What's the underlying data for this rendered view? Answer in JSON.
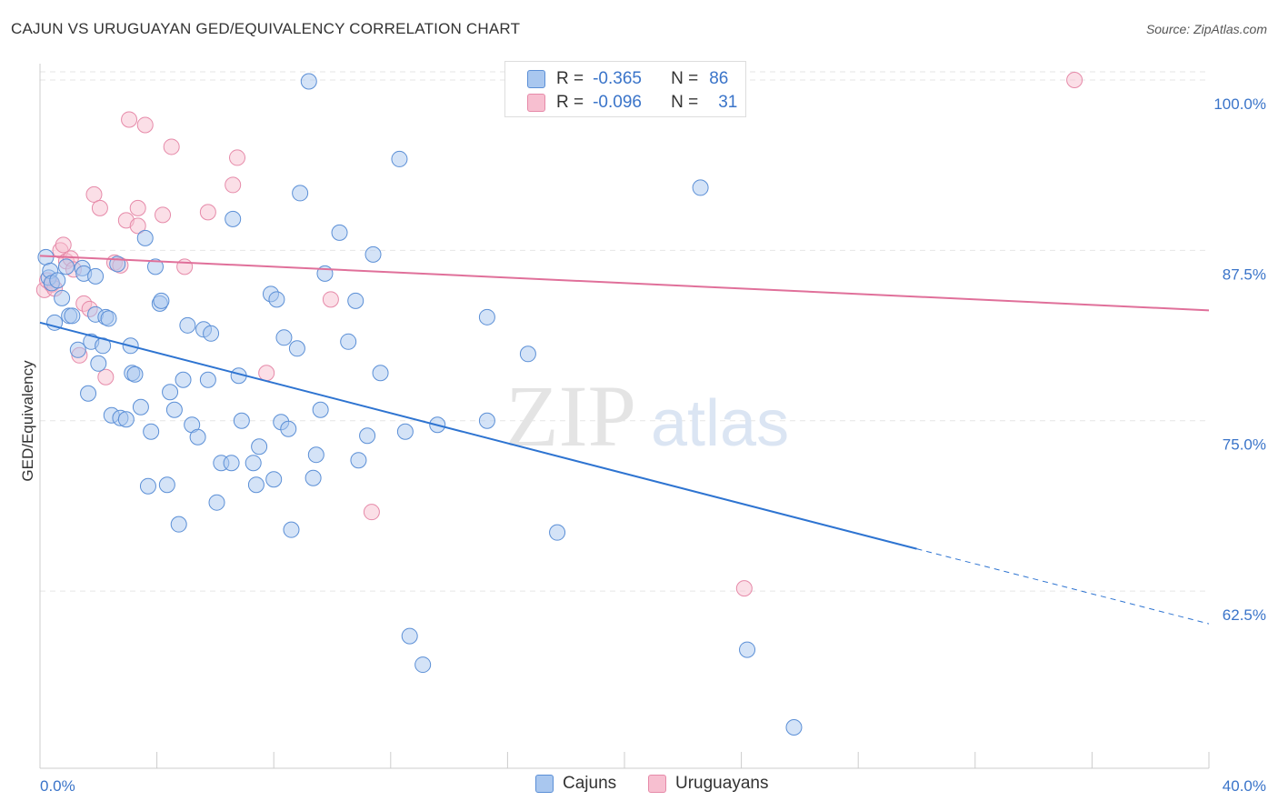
{
  "header": {
    "title": "CAJUN VS URUGUAYAN GED/EQUIVALENCY CORRELATION CHART",
    "source": "Source: ZipAtlas.com"
  },
  "watermark": {
    "zip": "ZIP",
    "atlas": "atlas"
  },
  "stats": {
    "r_label": "R =",
    "n_label": "N =",
    "rows": [
      {
        "r": "-0.365",
        "n": "86"
      },
      {
        "r": "-0.096",
        "n": "31"
      }
    ]
  },
  "colors": {
    "cajun_fill": "#a9c7ef",
    "cajun_stroke": "#5b8fd6",
    "cajun_line": "#2e74d1",
    "uru_fill": "#f7bfd0",
    "uru_stroke": "#e68aa9",
    "uru_line": "#e0709a",
    "tick_text": "#3a74c9",
    "grid": "#e6e6e6"
  },
  "chart_data": {
    "type": "scatter",
    "title": "CAJUN VS URUGUAYAN GED/EQUIVALENCY CORRELATION CHART",
    "xlabel": "",
    "ylabel": "GED/Equivalency",
    "xlim": [
      0,
      40
    ],
    "ylim": [
      49.5,
      101.2
    ],
    "x_tick_labels": [
      "0.0%",
      "40.0%"
    ],
    "y_ticks": [
      62.5,
      75.0,
      87.5,
      100.0
    ],
    "y_tick_labels": [
      "62.5%",
      "75.0%",
      "87.5%",
      "100.0%"
    ],
    "grid": true,
    "legend": "bottom-center",
    "series": [
      {
        "name": "Cajuns",
        "trend": {
          "x0": 0,
          "y0": 82.2,
          "x1": 30,
          "y1": 65.6,
          "dashed_to_x": 40,
          "dashed_to_y": 60.1
        },
        "points": [
          [
            0.2,
            87.0
          ],
          [
            0.3,
            85.5
          ],
          [
            0.35,
            86.0
          ],
          [
            0.4,
            85.1
          ],
          [
            0.5,
            82.2
          ],
          [
            0.6,
            85.3
          ],
          [
            0.75,
            84.0
          ],
          [
            0.9,
            86.3
          ],
          [
            1.0,
            82.7
          ],
          [
            1.1,
            82.7
          ],
          [
            1.3,
            80.2
          ],
          [
            1.45,
            86.2
          ],
          [
            1.5,
            85.8
          ],
          [
            1.65,
            77.0
          ],
          [
            1.75,
            80.8
          ],
          [
            1.9,
            82.8
          ],
          [
            1.9,
            85.6
          ],
          [
            2.0,
            79.2
          ],
          [
            2.15,
            80.5
          ],
          [
            2.25,
            82.6
          ],
          [
            2.35,
            82.5
          ],
          [
            2.45,
            75.4
          ],
          [
            2.65,
            86.5
          ],
          [
            2.75,
            75.2
          ],
          [
            2.95,
            75.1
          ],
          [
            3.1,
            80.5
          ],
          [
            3.15,
            78.5
          ],
          [
            3.25,
            78.4
          ],
          [
            3.45,
            76.0
          ],
          [
            3.6,
            88.4
          ],
          [
            3.7,
            70.2
          ],
          [
            3.8,
            74.2
          ],
          [
            3.95,
            86.3
          ],
          [
            4.1,
            83.6
          ],
          [
            4.15,
            83.8
          ],
          [
            4.35,
            70.3
          ],
          [
            4.45,
            77.1
          ],
          [
            4.6,
            75.8
          ],
          [
            4.75,
            67.4
          ],
          [
            4.9,
            78.0
          ],
          [
            5.05,
            82.0
          ],
          [
            5.2,
            74.7
          ],
          [
            5.4,
            73.8
          ],
          [
            5.6,
            81.7
          ],
          [
            5.75,
            78.0
          ],
          [
            5.85,
            81.4
          ],
          [
            6.05,
            69.0
          ],
          [
            6.2,
            71.9
          ],
          [
            6.55,
            71.9
          ],
          [
            6.6,
            89.8
          ],
          [
            6.8,
            78.3
          ],
          [
            6.9,
            75.0
          ],
          [
            7.3,
            71.9
          ],
          [
            7.4,
            70.3
          ],
          [
            7.5,
            73.1
          ],
          [
            7.9,
            84.3
          ],
          [
            8.0,
            70.7
          ],
          [
            8.1,
            83.9
          ],
          [
            8.25,
            74.9
          ],
          [
            8.35,
            81.1
          ],
          [
            8.5,
            74.4
          ],
          [
            8.6,
            67.0
          ],
          [
            8.8,
            80.3
          ],
          [
            8.9,
            91.7
          ],
          [
            9.2,
            99.9
          ],
          [
            9.35,
            70.8
          ],
          [
            9.45,
            72.5
          ],
          [
            9.6,
            75.8
          ],
          [
            9.75,
            85.8
          ],
          [
            10.25,
            88.8
          ],
          [
            10.55,
            80.8
          ],
          [
            10.8,
            83.8
          ],
          [
            10.9,
            72.1
          ],
          [
            11.2,
            73.9
          ],
          [
            11.4,
            87.2
          ],
          [
            11.65,
            78.5
          ],
          [
            12.3,
            94.2
          ],
          [
            12.5,
            74.2
          ],
          [
            12.65,
            59.2
          ],
          [
            13.1,
            57.1
          ],
          [
            13.6,
            74.7
          ],
          [
            15.3,
            75.0
          ],
          [
            15.3,
            82.6
          ],
          [
            16.7,
            79.9
          ],
          [
            17.7,
            66.8
          ],
          [
            22.6,
            92.1
          ],
          [
            24.2,
            58.2
          ],
          [
            25.8,
            52.5
          ]
        ]
      },
      {
        "name": "Uruguayans",
        "trend": {
          "x0": 0,
          "y0": 87.1,
          "x1": 40,
          "y1": 83.1
        },
        "points": [
          [
            0.15,
            84.6
          ],
          [
            0.25,
            85.3
          ],
          [
            0.4,
            85.0
          ],
          [
            0.5,
            84.7
          ],
          [
            0.7,
            87.5
          ],
          [
            0.8,
            87.9
          ],
          [
            0.9,
            86.7
          ],
          [
            1.05,
            86.9
          ],
          [
            1.15,
            86.1
          ],
          [
            1.35,
            79.8
          ],
          [
            1.5,
            83.6
          ],
          [
            1.7,
            83.2
          ],
          [
            1.85,
            91.6
          ],
          [
            2.05,
            90.6
          ],
          [
            2.25,
            78.2
          ],
          [
            2.55,
            86.6
          ],
          [
            2.75,
            86.4
          ],
          [
            2.95,
            89.7
          ],
          [
            3.05,
            97.1
          ],
          [
            3.35,
            90.6
          ],
          [
            3.35,
            89.3
          ],
          [
            3.6,
            96.7
          ],
          [
            4.2,
            90.1
          ],
          [
            4.5,
            95.1
          ],
          [
            4.95,
            86.3
          ],
          [
            5.75,
            90.3
          ],
          [
            6.6,
            92.3
          ],
          [
            6.75,
            94.3
          ],
          [
            7.75,
            78.5
          ],
          [
            9.95,
            83.9
          ],
          [
            11.35,
            68.3
          ],
          [
            24.1,
            62.7
          ],
          [
            35.4,
            100.0
          ]
        ]
      }
    ]
  },
  "legend": {
    "items": [
      {
        "label": "Cajuns"
      },
      {
        "label": "Uruguayans"
      }
    ]
  }
}
